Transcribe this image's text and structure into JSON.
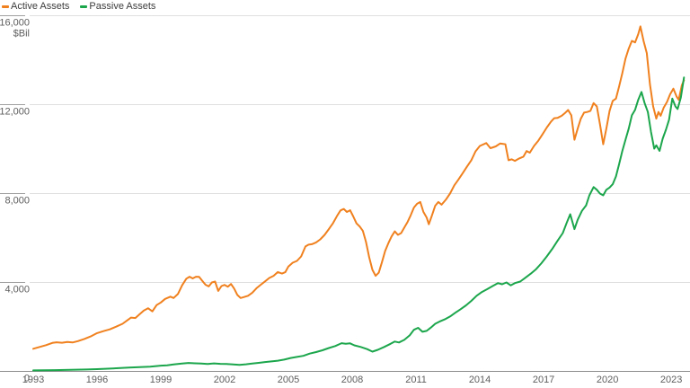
{
  "legend": {
    "items": [
      {
        "id": "active",
        "label": "Active Assets",
        "color": "#F0811F"
      },
      {
        "id": "passive",
        "label": "Passive Assets",
        "color": "#1CA64C"
      }
    ]
  },
  "y_axis": {
    "unit_label": "$Bil",
    "ticks": [
      {
        "value": 16000,
        "label": "16,000"
      },
      {
        "value": 12000,
        "label": "12,000"
      },
      {
        "value": 8000,
        "label": "8,000"
      },
      {
        "value": 4000,
        "label": "4,000"
      },
      {
        "value": 0,
        "label": "0"
      }
    ]
  },
  "x_axis": {
    "ticks": [
      "1993",
      "1996",
      "1999",
      "2002",
      "2005",
      "2008",
      "2011",
      "2014",
      "2017",
      "2020",
      "2023"
    ]
  },
  "chart_data": {
    "type": "line",
    "title": "",
    "ylabel": "$Bil",
    "xlim": [
      1993,
      2023.7
    ],
    "ylim": [
      0,
      16000
    ],
    "grid": "horizontal",
    "legend_position": "top-left",
    "colors": {
      "gridline": "#DFDFDF",
      "tick_stub": "#A0A0A0",
      "axis_line": "#8C8C8C",
      "tick_text": "#5E5E5E"
    },
    "series": [
      {
        "name": "Active Assets",
        "color": "#F0811F",
        "points": [
          [
            1993.0,
            1000
          ],
          [
            1993.3,
            1080
          ],
          [
            1993.6,
            1160
          ],
          [
            1993.9,
            1260
          ],
          [
            1994.1,
            1290
          ],
          [
            1994.35,
            1270
          ],
          [
            1994.6,
            1300
          ],
          [
            1994.85,
            1280
          ],
          [
            1995.1,
            1340
          ],
          [
            1995.4,
            1440
          ],
          [
            1995.7,
            1550
          ],
          [
            1996.0,
            1700
          ],
          [
            1996.3,
            1790
          ],
          [
            1996.6,
            1870
          ],
          [
            1996.9,
            1990
          ],
          [
            1997.2,
            2120
          ],
          [
            1997.4,
            2260
          ],
          [
            1997.6,
            2400
          ],
          [
            1997.8,
            2380
          ],
          [
            1998.0,
            2550
          ],
          [
            1998.2,
            2720
          ],
          [
            1998.4,
            2820
          ],
          [
            1998.6,
            2680
          ],
          [
            1998.8,
            2960
          ],
          [
            1999.0,
            3080
          ],
          [
            1999.2,
            3240
          ],
          [
            1999.45,
            3340
          ],
          [
            1999.6,
            3280
          ],
          [
            1999.8,
            3460
          ],
          [
            2000.0,
            3850
          ],
          [
            2000.2,
            4150
          ],
          [
            2000.35,
            4240
          ],
          [
            2000.5,
            4160
          ],
          [
            2000.65,
            4240
          ],
          [
            2000.8,
            4230
          ],
          [
            2000.95,
            4050
          ],
          [
            2001.1,
            3880
          ],
          [
            2001.25,
            3800
          ],
          [
            2001.4,
            3980
          ],
          [
            2001.55,
            4020
          ],
          [
            2001.7,
            3600
          ],
          [
            2001.85,
            3820
          ],
          [
            2002.0,
            3870
          ],
          [
            2002.15,
            3790
          ],
          [
            2002.3,
            3910
          ],
          [
            2002.45,
            3700
          ],
          [
            2002.6,
            3420
          ],
          [
            2002.75,
            3280
          ],
          [
            2002.9,
            3320
          ],
          [
            2003.1,
            3380
          ],
          [
            2003.3,
            3520
          ],
          [
            2003.5,
            3720
          ],
          [
            2003.7,
            3880
          ],
          [
            2003.9,
            4030
          ],
          [
            2004.1,
            4180
          ],
          [
            2004.3,
            4280
          ],
          [
            2004.5,
            4450
          ],
          [
            2004.7,
            4380
          ],
          [
            2004.85,
            4440
          ],
          [
            2005.0,
            4700
          ],
          [
            2005.2,
            4870
          ],
          [
            2005.4,
            4950
          ],
          [
            2005.6,
            5150
          ],
          [
            2005.8,
            5600
          ],
          [
            2005.95,
            5680
          ],
          [
            2006.1,
            5700
          ],
          [
            2006.3,
            5780
          ],
          [
            2006.5,
            5920
          ],
          [
            2006.7,
            6120
          ],
          [
            2006.9,
            6380
          ],
          [
            2007.1,
            6650
          ],
          [
            2007.3,
            7000
          ],
          [
            2007.45,
            7220
          ],
          [
            2007.6,
            7290
          ],
          [
            2007.75,
            7150
          ],
          [
            2007.9,
            7230
          ],
          [
            2008.05,
            6950
          ],
          [
            2008.2,
            6640
          ],
          [
            2008.35,
            6500
          ],
          [
            2008.5,
            6300
          ],
          [
            2008.65,
            5800
          ],
          [
            2008.8,
            5100
          ],
          [
            2008.95,
            4550
          ],
          [
            2009.1,
            4280
          ],
          [
            2009.25,
            4420
          ],
          [
            2009.4,
            4900
          ],
          [
            2009.55,
            5400
          ],
          [
            2009.7,
            5750
          ],
          [
            2009.85,
            6050
          ],
          [
            2010.0,
            6280
          ],
          [
            2010.15,
            6120
          ],
          [
            2010.3,
            6200
          ],
          [
            2010.45,
            6450
          ],
          [
            2010.6,
            6700
          ],
          [
            2010.75,
            7000
          ],
          [
            2010.9,
            7350
          ],
          [
            2011.05,
            7520
          ],
          [
            2011.2,
            7600
          ],
          [
            2011.35,
            7150
          ],
          [
            2011.5,
            6900
          ],
          [
            2011.6,
            6600
          ],
          [
            2011.75,
            7000
          ],
          [
            2011.9,
            7430
          ],
          [
            2012.05,
            7600
          ],
          [
            2012.2,
            7480
          ],
          [
            2012.4,
            7700
          ],
          [
            2012.6,
            7980
          ],
          [
            2012.8,
            8350
          ],
          [
            2013.0,
            8620
          ],
          [
            2013.2,
            8900
          ],
          [
            2013.4,
            9200
          ],
          [
            2013.6,
            9480
          ],
          [
            2013.8,
            9880
          ],
          [
            2014.0,
            10120
          ],
          [
            2014.3,
            10250
          ],
          [
            2014.5,
            10020
          ],
          [
            2014.75,
            10100
          ],
          [
            2014.95,
            10230
          ],
          [
            2015.2,
            10200
          ],
          [
            2015.35,
            9480
          ],
          [
            2015.5,
            9520
          ],
          [
            2015.65,
            9450
          ],
          [
            2015.85,
            9560
          ],
          [
            2016.05,
            9640
          ],
          [
            2016.2,
            9890
          ],
          [
            2016.35,
            9820
          ],
          [
            2016.55,
            10120
          ],
          [
            2016.75,
            10360
          ],
          [
            2016.95,
            10650
          ],
          [
            2017.15,
            10950
          ],
          [
            2017.35,
            11220
          ],
          [
            2017.5,
            11370
          ],
          [
            2017.65,
            11380
          ],
          [
            2017.85,
            11480
          ],
          [
            2018.0,
            11600
          ],
          [
            2018.15,
            11740
          ],
          [
            2018.3,
            11500
          ],
          [
            2018.45,
            10400
          ],
          [
            2018.6,
            10900
          ],
          [
            2018.75,
            11350
          ],
          [
            2018.9,
            11620
          ],
          [
            2019.05,
            11650
          ],
          [
            2019.2,
            11700
          ],
          [
            2019.35,
            12050
          ],
          [
            2019.5,
            11900
          ],
          [
            2019.65,
            11100
          ],
          [
            2019.8,
            10200
          ],
          [
            2019.95,
            10900
          ],
          [
            2020.1,
            11700
          ],
          [
            2020.25,
            12150
          ],
          [
            2020.4,
            12250
          ],
          [
            2020.55,
            12800
          ],
          [
            2020.7,
            13400
          ],
          [
            2020.85,
            14050
          ],
          [
            2021.0,
            14500
          ],
          [
            2021.15,
            14850
          ],
          [
            2021.3,
            14780
          ],
          [
            2021.45,
            15150
          ],
          [
            2021.55,
            15500
          ],
          [
            2021.7,
            14850
          ],
          [
            2021.85,
            14300
          ],
          [
            2022.0,
            12900
          ],
          [
            2022.15,
            11900
          ],
          [
            2022.3,
            11350
          ],
          [
            2022.4,
            11650
          ],
          [
            2022.5,
            11480
          ],
          [
            2022.65,
            11850
          ],
          [
            2022.8,
            12100
          ],
          [
            2022.95,
            12450
          ],
          [
            2023.1,
            12700
          ],
          [
            2023.25,
            12350
          ],
          [
            2023.35,
            12200
          ],
          [
            2023.5,
            12850
          ],
          [
            2023.6,
            13080
          ]
        ]
      },
      {
        "name": "Passive Assets",
        "color": "#1CA64C",
        "points": [
          [
            1993.0,
            25
          ],
          [
            1993.5,
            30
          ],
          [
            1994.0,
            38
          ],
          [
            1994.5,
            44
          ],
          [
            1995.0,
            55
          ],
          [
            1995.5,
            65
          ],
          [
            1996.0,
            80
          ],
          [
            1996.5,
            100
          ],
          [
            1997.0,
            125
          ],
          [
            1997.5,
            150
          ],
          [
            1998.0,
            175
          ],
          [
            1998.5,
            195
          ],
          [
            1999.0,
            240
          ],
          [
            1999.3,
            255
          ],
          [
            1999.6,
            290
          ],
          [
            2000.0,
            330
          ],
          [
            2000.3,
            360
          ],
          [
            2000.6,
            345
          ],
          [
            2000.9,
            330
          ],
          [
            2001.2,
            315
          ],
          [
            2001.5,
            340
          ],
          [
            2001.8,
            320
          ],
          [
            2002.1,
            310
          ],
          [
            2002.4,
            290
          ],
          [
            2002.7,
            275
          ],
          [
            2003.0,
            300
          ],
          [
            2003.3,
            330
          ],
          [
            2003.6,
            365
          ],
          [
            2003.9,
            400
          ],
          [
            2004.2,
            430
          ],
          [
            2004.5,
            460
          ],
          [
            2004.8,
            510
          ],
          [
            2005.1,
            580
          ],
          [
            2005.4,
            630
          ],
          [
            2005.7,
            680
          ],
          [
            2006.0,
            780
          ],
          [
            2006.3,
            850
          ],
          [
            2006.6,
            930
          ],
          [
            2006.9,
            1030
          ],
          [
            2007.2,
            1120
          ],
          [
            2007.5,
            1250
          ],
          [
            2007.7,
            1220
          ],
          [
            2007.9,
            1240
          ],
          [
            2008.1,
            1150
          ],
          [
            2008.4,
            1080
          ],
          [
            2008.7,
            980
          ],
          [
            2008.95,
            870
          ],
          [
            2009.2,
            950
          ],
          [
            2009.5,
            1080
          ],
          [
            2009.8,
            1220
          ],
          [
            2010.0,
            1320
          ],
          [
            2010.2,
            1280
          ],
          [
            2010.45,
            1400
          ],
          [
            2010.7,
            1600
          ],
          [
            2010.9,
            1850
          ],
          [
            2011.1,
            1940
          ],
          [
            2011.3,
            1760
          ],
          [
            2011.5,
            1800
          ],
          [
            2011.7,
            1950
          ],
          [
            2011.9,
            2120
          ],
          [
            2012.1,
            2220
          ],
          [
            2012.35,
            2320
          ],
          [
            2012.6,
            2450
          ],
          [
            2012.85,
            2620
          ],
          [
            2013.1,
            2780
          ],
          [
            2013.35,
            2950
          ],
          [
            2013.6,
            3150
          ],
          [
            2013.85,
            3380
          ],
          [
            2014.1,
            3550
          ],
          [
            2014.35,
            3680
          ],
          [
            2014.6,
            3820
          ],
          [
            2014.85,
            3950
          ],
          [
            2015.05,
            3900
          ],
          [
            2015.25,
            3980
          ],
          [
            2015.45,
            3850
          ],
          [
            2015.65,
            3950
          ],
          [
            2015.9,
            4020
          ],
          [
            2016.15,
            4200
          ],
          [
            2016.4,
            4380
          ],
          [
            2016.65,
            4580
          ],
          [
            2016.9,
            4850
          ],
          [
            2017.15,
            5150
          ],
          [
            2017.4,
            5480
          ],
          [
            2017.65,
            5850
          ],
          [
            2017.9,
            6200
          ],
          [
            2018.1,
            6700
          ],
          [
            2018.25,
            7050
          ],
          [
            2018.45,
            6380
          ],
          [
            2018.6,
            6800
          ],
          [
            2018.8,
            7200
          ],
          [
            2019.0,
            7450
          ],
          [
            2019.15,
            7900
          ],
          [
            2019.35,
            8270
          ],
          [
            2019.5,
            8150
          ],
          [
            2019.65,
            7980
          ],
          [
            2019.8,
            7900
          ],
          [
            2019.95,
            8150
          ],
          [
            2020.1,
            8250
          ],
          [
            2020.25,
            8400
          ],
          [
            2020.4,
            8750
          ],
          [
            2020.55,
            9300
          ],
          [
            2020.7,
            9900
          ],
          [
            2020.85,
            10400
          ],
          [
            2021.0,
            10900
          ],
          [
            2021.15,
            11500
          ],
          [
            2021.3,
            11750
          ],
          [
            2021.45,
            12200
          ],
          [
            2021.6,
            12550
          ],
          [
            2021.75,
            12050
          ],
          [
            2021.9,
            11650
          ],
          [
            2022.05,
            10750
          ],
          [
            2022.2,
            10000
          ],
          [
            2022.3,
            10150
          ],
          [
            2022.45,
            9900
          ],
          [
            2022.6,
            10450
          ],
          [
            2022.75,
            10850
          ],
          [
            2022.9,
            11300
          ],
          [
            2023.05,
            12250
          ],
          [
            2023.2,
            11900
          ],
          [
            2023.3,
            11780
          ],
          [
            2023.45,
            12300
          ],
          [
            2023.6,
            13200
          ]
        ]
      }
    ]
  }
}
